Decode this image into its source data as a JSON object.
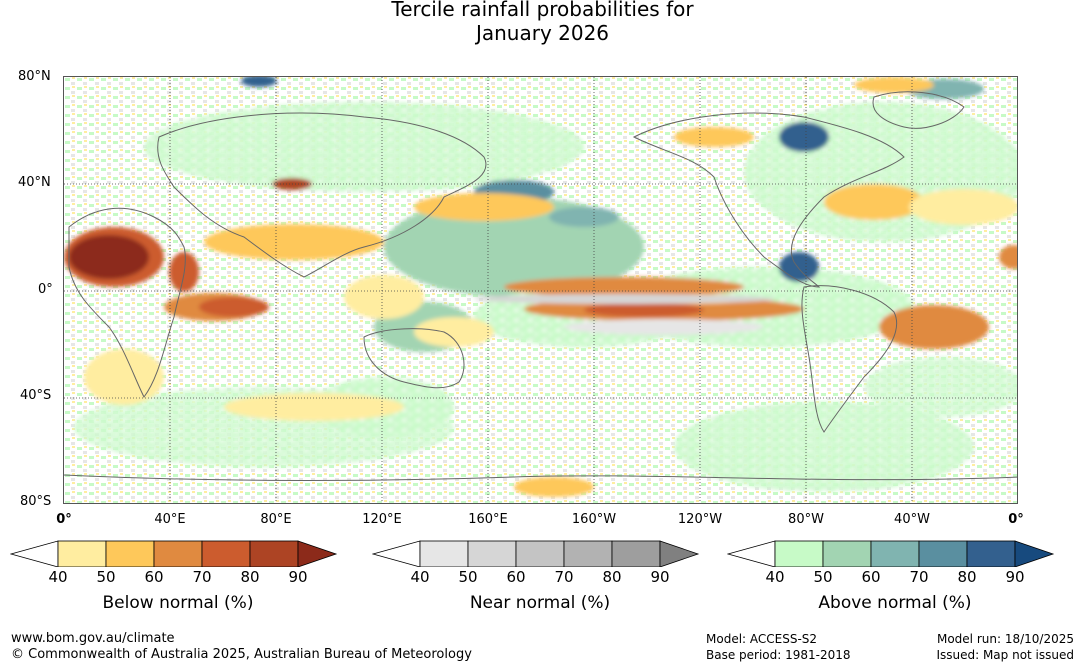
{
  "title_line1": "Tercile rainfall probabilities for",
  "title_line2": "January 2026",
  "lat_labels": [
    "80°N",
    "40°N",
    "0°",
    "40°S",
    "80°S"
  ],
  "lon_labels": [
    "0°",
    "40°E",
    "80°E",
    "120°E",
    "160°E",
    "160°W",
    "120°W",
    "80°W",
    "40°W",
    "0°"
  ],
  "colorbars": [
    {
      "title": "Below normal (%)",
      "ticks": [
        "40",
        "50",
        "60",
        "70",
        "80",
        "90"
      ],
      "colors": [
        "#ffffff",
        "#ffeda0",
        "#fec85a",
        "#e08a40",
        "#cc5c2e",
        "#ad4424",
        "#8c2a1a"
      ]
    },
    {
      "title": "Near normal (%)",
      "ticks": [
        "40",
        "50",
        "60",
        "70",
        "80",
        "90"
      ],
      "colors": [
        "#ffffff",
        "#e6e6e6",
        "#d6d6d6",
        "#c4c4c4",
        "#b2b2b2",
        "#9e9e9e",
        "#808080"
      ]
    },
    {
      "title": "Above normal (%)",
      "ticks": [
        "40",
        "50",
        "60",
        "70",
        "80",
        "90"
      ],
      "colors": [
        "#ffffff",
        "#c7fac7",
        "#a2d4b2",
        "#80b4b0",
        "#5a8fa0",
        "#33608e",
        "#174a7e"
      ]
    }
  ],
  "footer": {
    "url": "www.bom.gov.au/climate",
    "copyright": "© Commonwealth of Australia 2025, Australian Bureau of Meteorology",
    "model": "Model: ACCESS-S2",
    "base_period": "Base period: 1981-2018",
    "model_run": "Model run: 18/10/2025",
    "issued": "Issued: Map not issued"
  }
}
